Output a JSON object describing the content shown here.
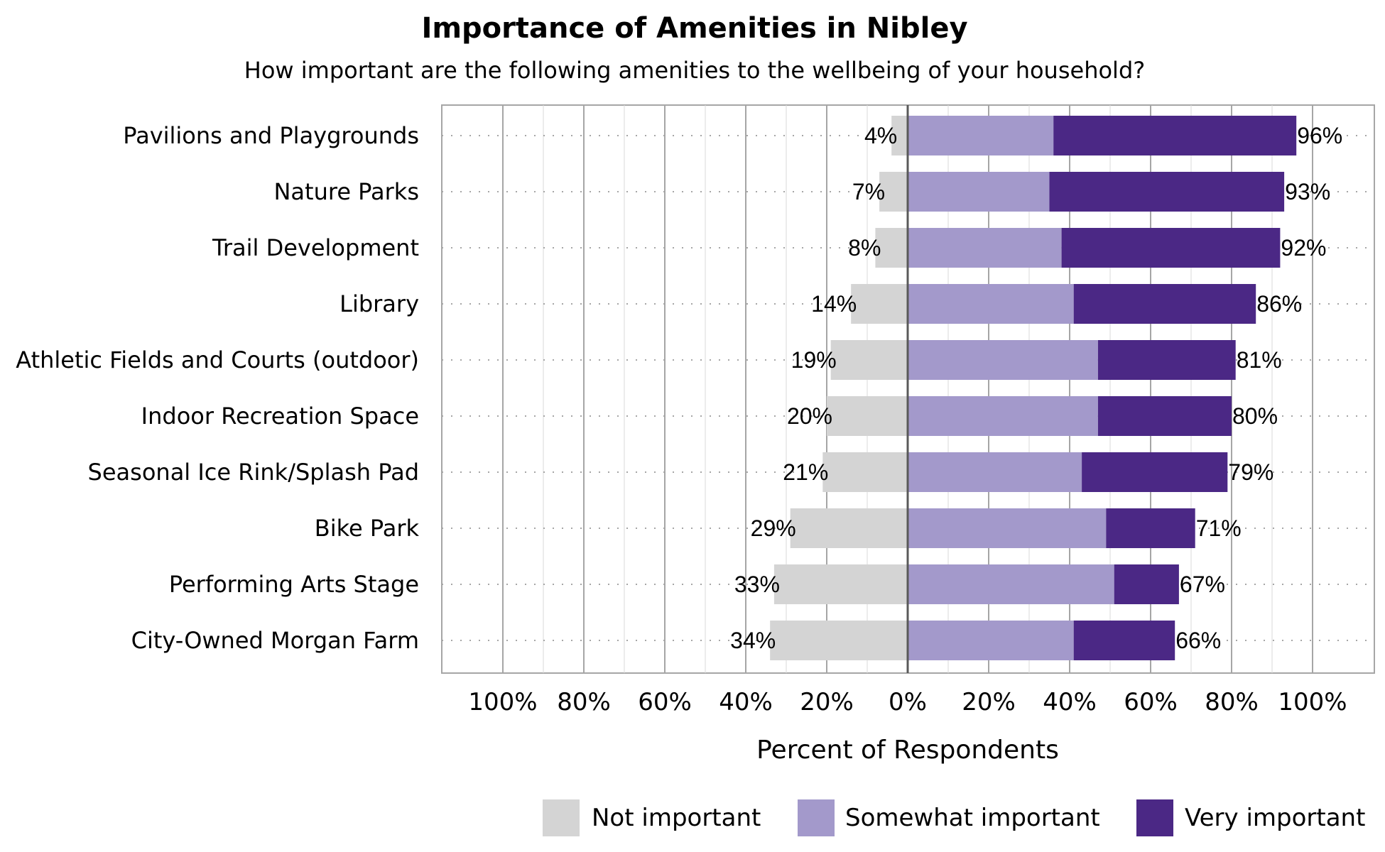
{
  "chart_data": {
    "type": "bar",
    "orientation": "horizontal",
    "stacked": "diverging",
    "title": "Importance of Amenities in Nibley",
    "subtitle": "How important are the following amenities to the wellbeing of your household?",
    "xlabel": "Percent of Respondents",
    "ylabel": "",
    "xlim": [
      -100,
      100
    ],
    "x_ticks": [
      -100,
      -80,
      -60,
      -40,
      -20,
      0,
      20,
      40,
      60,
      80,
      100
    ],
    "x_tick_labels": [
      "100%",
      "80%",
      "60%",
      "40%",
      "20%",
      "0%",
      "20%",
      "40%",
      "60%",
      "80%",
      "100%"
    ],
    "grid": true,
    "legend_position": "bottom-right",
    "categories": [
      "Pavilions and Playgrounds",
      "Nature Parks",
      "Trail Development",
      "Library",
      "Athletic Fields and Courts (outdoor)",
      "Indoor Recreation Space",
      "Seasonal Ice Rink/Splash Pad",
      "Bike Park",
      "Performing Arts Stage",
      "City-Owned Morgan Farm"
    ],
    "series": [
      {
        "name": "Not important",
        "color": "#d4d4d4",
        "direction": "negative",
        "values": [
          4,
          7,
          8,
          14,
          19,
          20,
          21,
          29,
          33,
          34
        ]
      },
      {
        "name": "Somewhat important",
        "color": "#a399cb",
        "direction": "positive",
        "values": [
          36,
          35,
          38,
          41,
          47,
          47,
          43,
          49,
          51,
          41
        ]
      },
      {
        "name": "Very important",
        "color": "#4b2885",
        "direction": "positive",
        "values": [
          60,
          58,
          54,
          45,
          34,
          33,
          36,
          22,
          16,
          25
        ]
      }
    ],
    "left_labels": [
      "4%",
      "7%",
      "8%",
      "14%",
      "19%",
      "20%",
      "21%",
      "29%",
      "33%",
      "34%"
    ],
    "right_labels": [
      "96%",
      "93%",
      "92%",
      "86%",
      "81%",
      "80%",
      "79%",
      "71%",
      "67%",
      "66%"
    ]
  }
}
